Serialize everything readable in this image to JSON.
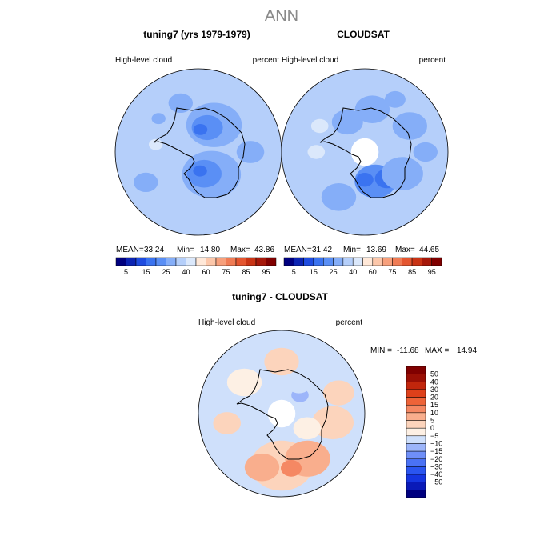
{
  "page": {
    "title": "ANN"
  },
  "colors": {
    "land_outline": "#000000",
    "missing": "#ffffff",
    "abs_scale": [
      "#00007f",
      "#0c24b3",
      "#1f4ce0",
      "#3a73f0",
      "#5a8ff5",
      "#85aef8",
      "#b5cffa",
      "#dbe8fb",
      "#ffe8d8",
      "#fcc7aa",
      "#f7a07c",
      "#f07c55",
      "#e45630",
      "#c93415",
      "#a6180a",
      "#800000"
    ],
    "diff_scale": [
      "#00007f",
      "#0a1ab8",
      "#1535e0",
      "#2a55f0",
      "#4a72f5",
      "#6f8ff8",
      "#9cb5fa",
      "#cfe0fb",
      "#fdf0e4",
      "#fcd4bc",
      "#f9ae8d",
      "#f58863",
      "#ee6338",
      "#de401a",
      "#c2260c",
      "#9a0f05",
      "#800000"
    ]
  },
  "chart_data": [
    {
      "type": "heatmap",
      "projection": "south-polar-stereographic",
      "title": "tuning7 (yrs 1979-1979)",
      "left_label": "High-level cloud",
      "right_label": "percent",
      "stats": {
        "mean_label": "MEAN=",
        "mean": "33.24",
        "min_label": "Min=",
        "min": "14.80",
        "max_label": "Max=",
        "max": "43.86"
      },
      "field": {
        "background_level": 6,
        "blobs": [
          {
            "lon": 150,
            "lat": -72,
            "level": 5,
            "r": 16
          },
          {
            "lon": 160,
            "lat": -75,
            "level": 4,
            "r": 9
          },
          {
            "lon": 175,
            "lat": -77,
            "level": 3,
            "r": 4
          },
          {
            "lon": 30,
            "lat": -75,
            "level": 5,
            "r": 17
          },
          {
            "lon": 15,
            "lat": -77,
            "level": 4,
            "r": 10
          },
          {
            "lon": 5,
            "lat": -79,
            "level": 3,
            "r": 4
          },
          {
            "lon": -60,
            "lat": -55,
            "level": 5,
            "r": 7
          },
          {
            "lon": 90,
            "lat": -60,
            "level": 5,
            "r": 8
          },
          {
            "lon": 200,
            "lat": -60,
            "level": 5,
            "r": 7
          },
          {
            "lon": -100,
            "lat": -65,
            "level": 7,
            "r": 4
          },
          {
            "lon": -130,
            "lat": -60,
            "level": 5,
            "r": 4
          }
        ]
      }
    },
    {
      "type": "heatmap",
      "projection": "south-polar-stereographic",
      "title": "CLOUDSAT",
      "left_label": "High-level cloud",
      "right_label": "percent",
      "stats": {
        "mean_label": "MEAN=",
        "mean": "31.42",
        "min_label": "Min=",
        "min": "13.69",
        "max_label": "Max=",
        "max": "44.65"
      },
      "missing_cap_lat": -82,
      "field": {
        "background_level": 6,
        "blobs": [
          {
            "lon": 20,
            "lat": -72,
            "level": 4,
            "r": 12
          },
          {
            "lon": 40,
            "lat": -70,
            "level": 3,
            "r": 7
          },
          {
            "lon": 0,
            "lat": -74,
            "level": 3,
            "r": 5
          },
          {
            "lon": 60,
            "lat": -65,
            "level": 5,
            "r": 12
          },
          {
            "lon": -30,
            "lat": -60,
            "level": 5,
            "r": 10
          },
          {
            "lon": -90,
            "lat": -62,
            "level": 7,
            "r": 5
          },
          {
            "lon": -120,
            "lat": -60,
            "level": 7,
            "r": 5
          },
          {
            "lon": 120,
            "lat": -60,
            "level": 5,
            "r": 10
          },
          {
            "lon": 170,
            "lat": -65,
            "level": 5,
            "r": 10
          },
          {
            "lon": -150,
            "lat": -70,
            "level": 5,
            "r": 9
          },
          {
            "lon": 150,
            "lat": -55,
            "level": 5,
            "r": 6
          },
          {
            "lon": 90,
            "lat": -55,
            "level": 5,
            "r": 7
          }
        ]
      }
    },
    {
      "type": "heatmap",
      "projection": "south-polar-stereographic",
      "title": "tuning7 - CLOUDSAT",
      "left_label": "High-level cloud",
      "right_label": "percent",
      "stats": {
        "min_label": "MIN =",
        "min": "-11.68",
        "max_label": "MAX =",
        "max": "14.94"
      },
      "missing_cap_lat": -82,
      "field": {
        "background_level": 7,
        "blobs": [
          {
            "lon": 0,
            "lat": -60,
            "level": 9,
            "r": 18
          },
          {
            "lon": 30,
            "lat": -60,
            "level": 10,
            "r": 13
          },
          {
            "lon": -20,
            "lat": -57,
            "level": 10,
            "r": 10
          },
          {
            "lon": 10,
            "lat": -58,
            "level": 11,
            "r": 6
          },
          {
            "lon": 80,
            "lat": -60,
            "level": 9,
            "r": 12
          },
          {
            "lon": 110,
            "lat": -55,
            "level": 9,
            "r": 9
          },
          {
            "lon": 180,
            "lat": -60,
            "level": 9,
            "r": 10
          },
          {
            "lon": -80,
            "lat": -58,
            "level": 9,
            "r": 8
          },
          {
            "lon": -130,
            "lat": -62,
            "level": 8,
            "r": 10
          },
          {
            "lon": 135,
            "lat": -75,
            "level": 6,
            "r": 5
          },
          {
            "lon": 150,
            "lat": -70,
            "level": 7,
            "r": 7
          },
          {
            "lon": 60,
            "lat": -73,
            "level": 8,
            "r": 8
          }
        ]
      }
    }
  ],
  "abs_colorbar": {
    "tick_labels": [
      "5",
      "15",
      "25",
      "40",
      "60",
      "75",
      "85",
      "95"
    ],
    "tick_after_box": [
      1,
      3,
      5,
      7,
      9,
      11,
      13,
      15
    ]
  },
  "diff_colorbar": {
    "labels": [
      "50",
      "40",
      "30",
      "20",
      "15",
      "10",
      "5",
      "0",
      "−5",
      "−10",
      "−15",
      "−20",
      "−30",
      "−40",
      "−50"
    ]
  }
}
